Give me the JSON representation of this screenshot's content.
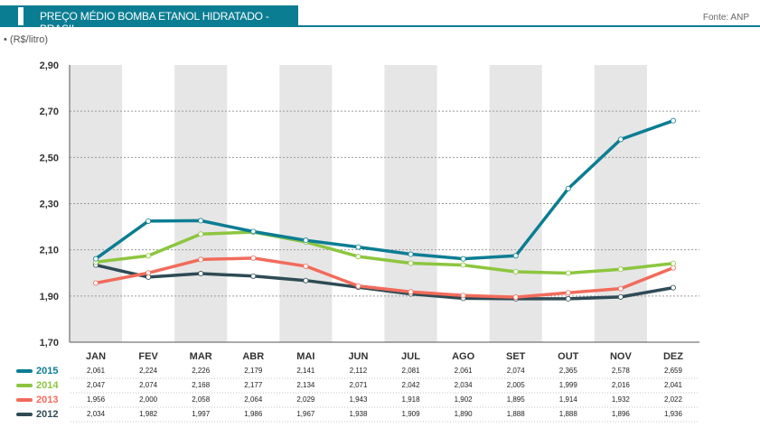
{
  "header": {
    "title": "PREÇO MÉDIO BOMBA ETANOL HIDRATADO - BRASIL",
    "source": "Fonte: ANP",
    "unit": "• (R$/litro)"
  },
  "colors": {
    "header": "#0b7d93",
    "band": "#e6e6e6",
    "2015": "#0b7d93",
    "2014": "#8cc63f",
    "2013": "#f26b5b",
    "2012": "#2f4b55"
  },
  "chart_data": {
    "type": "line",
    "title": "PREÇO MÉDIO BOMBA ETANOL HIDRATADO - BRASIL",
    "ylabel": "(R$/litro)",
    "ylim": [
      1.7,
      2.9
    ],
    "yticks": [
      "2,90",
      "2,70",
      "2,50",
      "2,30",
      "2,10",
      "1,90",
      "1,70"
    ],
    "ytick_values": [
      2.9,
      2.7,
      2.5,
      2.3,
      2.1,
      1.9,
      1.7
    ],
    "grid": "horizontal dotted",
    "categories": [
      "JAN",
      "FEV",
      "MAR",
      "ABR",
      "MAI",
      "JUN",
      "JUL",
      "AGO",
      "SET",
      "OUT",
      "NOV",
      "DEZ"
    ],
    "series": [
      {
        "name": "2015",
        "values": [
          2.061,
          2.224,
          2.226,
          2.179,
          2.141,
          2.112,
          2.081,
          2.061,
          2.074,
          2.365,
          2.578,
          2.659
        ],
        "labels": [
          "2,061",
          "2,224",
          "2,226",
          "2,179",
          "2,141",
          "2,112",
          "2,081",
          "2,061",
          "2,074",
          "2,365",
          "2,578",
          "2,659"
        ]
      },
      {
        "name": "2014",
        "values": [
          2.047,
          2.074,
          2.168,
          2.177,
          2.134,
          2.071,
          2.042,
          2.034,
          2.005,
          1.999,
          2.016,
          2.041
        ],
        "labels": [
          "2,047",
          "2,074",
          "2,168",
          "2,177",
          "2,134",
          "2,071",
          "2,042",
          "2,034",
          "2,005",
          "1,999",
          "2,016",
          "2,041"
        ]
      },
      {
        "name": "2013",
        "values": [
          1.956,
          2.0,
          2.058,
          2.064,
          2.029,
          1.943,
          1.918,
          1.902,
          1.895,
          1.914,
          1.932,
          2.022
        ],
        "labels": [
          "1,956",
          "2,000",
          "2,058",
          "2,064",
          "2,029",
          "1,943",
          "1,918",
          "1,902",
          "1,895",
          "1,914",
          "1,932",
          "2,022"
        ]
      },
      {
        "name": "2012",
        "values": [
          2.034,
          1.982,
          1.997,
          1.986,
          1.967,
          1.938,
          1.909,
          1.89,
          1.888,
          1.888,
          1.896,
          1.936
        ],
        "labels": [
          "2,034",
          "1,982",
          "1,997",
          "1,986",
          "1,967",
          "1,938",
          "1,909",
          "1,890",
          "1,888",
          "1,888",
          "1,896",
          "1,936"
        ]
      }
    ],
    "legend": "data table below x-axis"
  }
}
